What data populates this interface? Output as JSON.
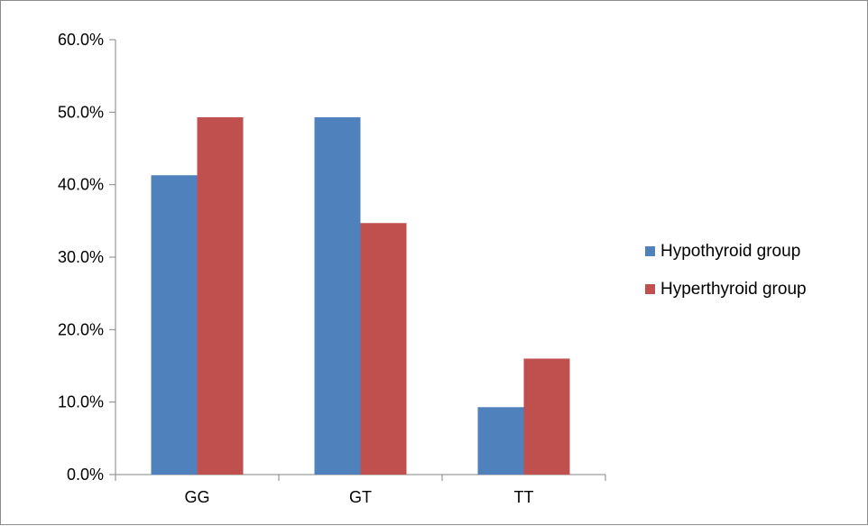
{
  "chart_data": {
    "type": "bar",
    "categories": [
      "GG",
      "GT",
      "TT"
    ],
    "series": [
      {
        "name": "Hypothyroid group",
        "values": [
          41.3,
          49.3,
          9.3
        ],
        "color": "#4f81bd"
      },
      {
        "name": "Hyperthyroid group",
        "values": [
          49.3,
          34.7,
          16.0
        ],
        "color": "#c0504d"
      }
    ],
    "ylim": [
      0,
      60
    ],
    "yticks": [
      0,
      10,
      20,
      30,
      40,
      50,
      60
    ],
    "ytick_labels": [
      "0.0%",
      "10.0%",
      "20.0%",
      "30.0%",
      "40.0%",
      "50.0%",
      "60.0%"
    ],
    "grid": false,
    "legend": "right"
  }
}
